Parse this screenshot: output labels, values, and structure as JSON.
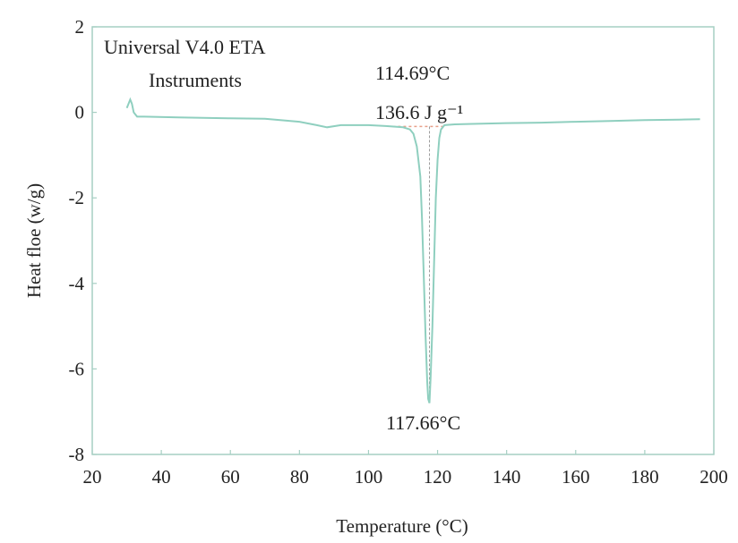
{
  "chart_data": {
    "type": "line",
    "title": "",
    "xlabel": "Temperature (°C)",
    "ylabel": "Heat floe (w/g)",
    "xlim": [
      20,
      200
    ],
    "ylim": [
      -8,
      2
    ],
    "xticks": [
      "20",
      "40",
      "60",
      "80",
      "100",
      "120",
      "140",
      "160",
      "180",
      "200"
    ],
    "yticks": [
      "2",
      "0",
      "-2",
      "-4",
      "-6",
      "-8"
    ],
    "grid": false,
    "line_color": "#8fcfbf",
    "frame_color": "#a6cfc3",
    "series": [
      {
        "x": [
          30,
          31,
          31.5,
          32,
          33,
          35,
          45,
          60,
          70,
          80,
          85,
          88,
          92,
          100,
          105,
          110,
          112,
          113,
          114,
          115,
          115.5,
          116,
          116.5,
          117,
          117.3,
          117.66,
          118,
          118.5,
          119,
          119.5,
          120,
          120.5,
          121,
          122,
          125,
          130,
          140,
          150,
          160,
          170,
          180,
          190,
          196
        ],
        "y": [
          0.1,
          0.3,
          0.2,
          0.0,
          -0.1,
          -0.1,
          -0.12,
          -0.14,
          -0.15,
          -0.22,
          -0.3,
          -0.35,
          -0.3,
          -0.3,
          -0.32,
          -0.35,
          -0.4,
          -0.5,
          -0.8,
          -1.5,
          -2.5,
          -3.8,
          -5.2,
          -6.3,
          -6.7,
          -6.8,
          -6.2,
          -5.0,
          -3.5,
          -2.0,
          -1.1,
          -0.6,
          -0.4,
          -0.3,
          -0.28,
          -0.27,
          -0.25,
          -0.24,
          -0.22,
          -0.2,
          -0.18,
          -0.17,
          -0.16
        ]
      }
    ],
    "baseline": {
      "x": [
        107,
        122
      ],
      "y": [
        -0.33,
        -0.33
      ]
    },
    "annotations": [
      {
        "id": "instrument",
        "text": "Universal V4.0 ETA"
      },
      {
        "id": "instrument2",
        "text": "Instruments"
      },
      {
        "id": "onset",
        "text": "114.69°C"
      },
      {
        "id": "enthalpy",
        "text": "136.6 J g⁻¹"
      },
      {
        "id": "peak",
        "text": "117.66°C"
      }
    ]
  }
}
